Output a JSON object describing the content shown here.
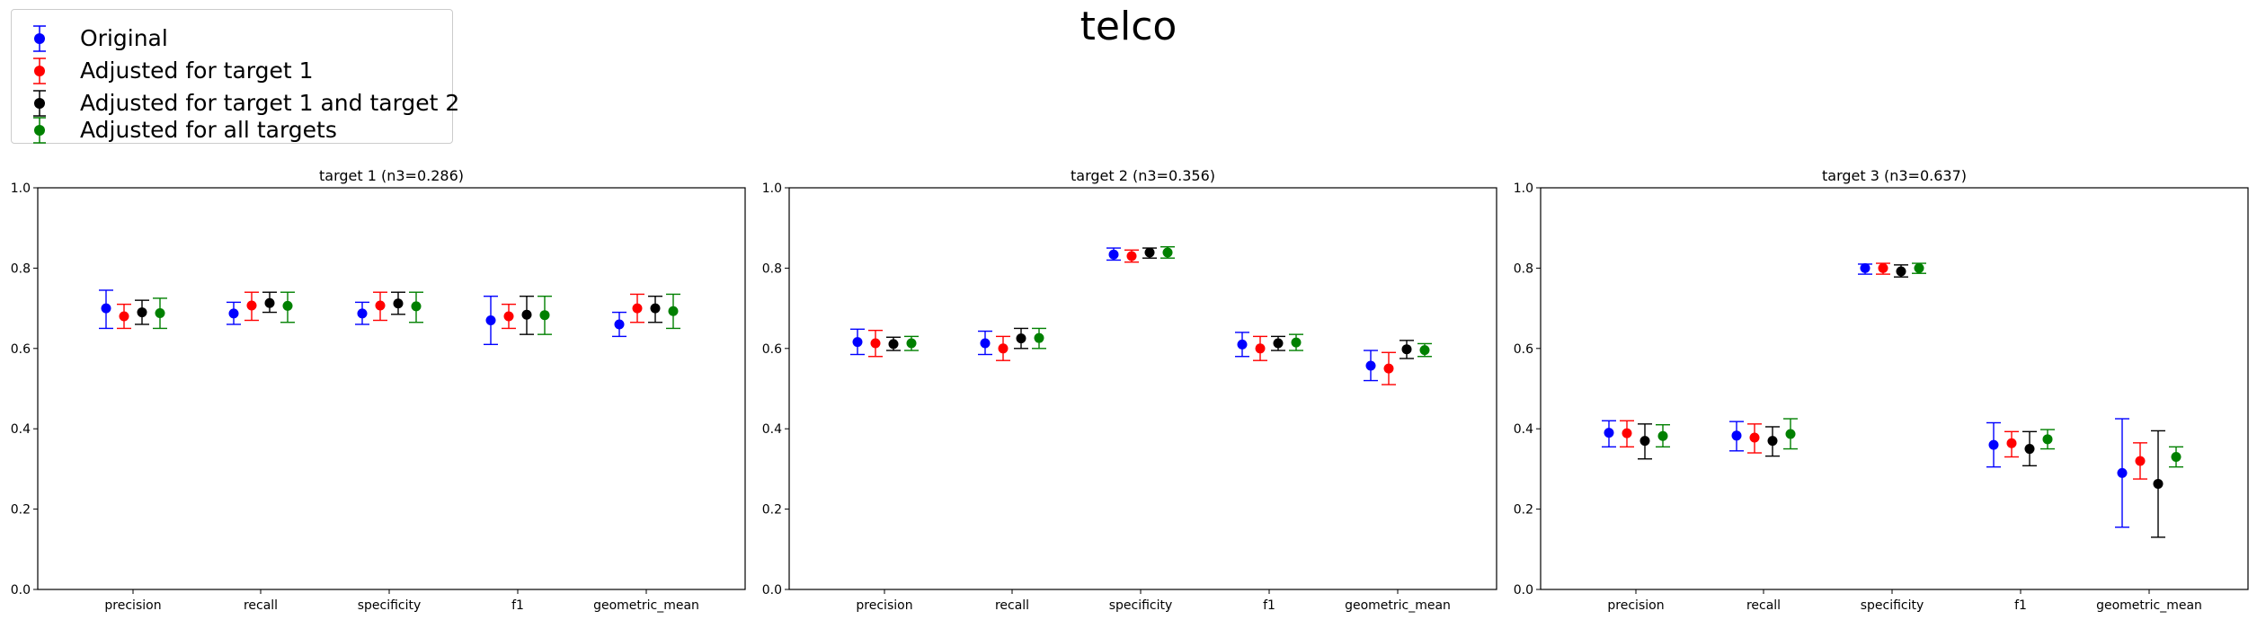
{
  "figure_title": "telco",
  "legend": [
    {
      "label": "Original",
      "color": "#0000ff"
    },
    {
      "label": "Adjusted for target 1",
      "color": "#ff0000"
    },
    {
      "label": "Adjusted for target 1 and target 2",
      "color": "#000000"
    },
    {
      "label": "Adjusted for all targets",
      "color": "#008000"
    }
  ],
  "chart_data": [
    {
      "type": "scatter",
      "title": "target 1 (n3=0.286)",
      "categories": [
        "precision",
        "recall",
        "specificity",
        "f1",
        "geometric_mean"
      ],
      "ylim": [
        0,
        1.0
      ],
      "yticks": [
        "0.0",
        "0.2",
        "0.4",
        "0.6",
        "0.8",
        "1.0"
      ],
      "error_bars": true,
      "series": [
        {
          "name": "Original",
          "color": "#0000ff",
          "values": [
            0.7,
            0.687,
            0.687,
            0.67,
            0.66
          ],
          "lower": [
            0.65,
            0.66,
            0.66,
            0.61,
            0.63
          ],
          "upper": [
            0.745,
            0.715,
            0.715,
            0.73,
            0.69
          ]
        },
        {
          "name": "Adjusted for target 1",
          "color": "#ff0000",
          "values": [
            0.68,
            0.707,
            0.707,
            0.68,
            0.7
          ],
          "lower": [
            0.65,
            0.67,
            0.67,
            0.65,
            0.665
          ],
          "upper": [
            0.71,
            0.74,
            0.74,
            0.71,
            0.735
          ]
        },
        {
          "name": "Adjusted for target 1 and target 2",
          "color": "#000000",
          "values": [
            0.69,
            0.713,
            0.712,
            0.684,
            0.7
          ],
          "lower": [
            0.66,
            0.69,
            0.685,
            0.635,
            0.665
          ],
          "upper": [
            0.72,
            0.74,
            0.74,
            0.73,
            0.73
          ]
        },
        {
          "name": "Adjusted for all targets",
          "color": "#008000",
          "values": [
            0.688,
            0.706,
            0.705,
            0.683,
            0.693
          ],
          "lower": [
            0.65,
            0.665,
            0.665,
            0.635,
            0.65
          ],
          "upper": [
            0.725,
            0.74,
            0.74,
            0.73,
            0.735
          ]
        }
      ]
    },
    {
      "type": "scatter",
      "title": "target 2 (n3=0.356)",
      "categories": [
        "precision",
        "recall",
        "specificity",
        "f1",
        "geometric_mean"
      ],
      "ylim": [
        0,
        1.0
      ],
      "yticks": [
        "0.0",
        "0.2",
        "0.4",
        "0.6",
        "0.8",
        "1.0"
      ],
      "error_bars": true,
      "series": [
        {
          "name": "Original",
          "color": "#0000ff",
          "values": [
            0.616,
            0.613,
            0.834,
            0.61,
            0.557
          ],
          "lower": [
            0.585,
            0.585,
            0.82,
            0.58,
            0.52
          ],
          "upper": [
            0.648,
            0.643,
            0.85,
            0.64,
            0.595
          ]
        },
        {
          "name": "Adjusted for target 1",
          "color": "#ff0000",
          "values": [
            0.613,
            0.6,
            0.83,
            0.6,
            0.55
          ],
          "lower": [
            0.58,
            0.57,
            0.815,
            0.57,
            0.51
          ],
          "upper": [
            0.645,
            0.63,
            0.845,
            0.63,
            0.59
          ]
        },
        {
          "name": "Adjusted for target 1 and target 2",
          "color": "#000000",
          "values": [
            0.611,
            0.625,
            0.839,
            0.613,
            0.598
          ],
          "lower": [
            0.595,
            0.6,
            0.825,
            0.595,
            0.575
          ],
          "upper": [
            0.628,
            0.65,
            0.85,
            0.63,
            0.62
          ]
        },
        {
          "name": "Adjusted for all targets",
          "color": "#008000",
          "values": [
            0.613,
            0.626,
            0.839,
            0.615,
            0.596
          ],
          "lower": [
            0.595,
            0.6,
            0.825,
            0.595,
            0.58
          ],
          "upper": [
            0.63,
            0.65,
            0.853,
            0.635,
            0.612
          ]
        }
      ]
    },
    {
      "type": "scatter",
      "title": "target 3 (n3=0.637)",
      "categories": [
        "precision",
        "recall",
        "specificity",
        "f1",
        "geometric_mean"
      ],
      "ylim": [
        0,
        1.0
      ],
      "yticks": [
        "0.0",
        "0.2",
        "0.4",
        "0.6",
        "0.8",
        "1.0"
      ],
      "error_bars": true,
      "series": [
        {
          "name": "Original",
          "color": "#0000ff",
          "values": [
            0.39,
            0.383,
            0.8,
            0.36,
            0.29
          ],
          "lower": [
            0.355,
            0.345,
            0.785,
            0.305,
            0.155
          ],
          "upper": [
            0.42,
            0.418,
            0.81,
            0.415,
            0.425
          ]
        },
        {
          "name": "Adjusted for target 1",
          "color": "#ff0000",
          "values": [
            0.389,
            0.378,
            0.8,
            0.364,
            0.32
          ],
          "lower": [
            0.355,
            0.34,
            0.785,
            0.33,
            0.275
          ],
          "upper": [
            0.42,
            0.412,
            0.812,
            0.393,
            0.365
          ]
        },
        {
          "name": "Adjusted for target 1 and target 2",
          "color": "#000000",
          "values": [
            0.37,
            0.37,
            0.792,
            0.35,
            0.263
          ],
          "lower": [
            0.325,
            0.332,
            0.778,
            0.308,
            0.13
          ],
          "upper": [
            0.412,
            0.405,
            0.808,
            0.393,
            0.395
          ]
        },
        {
          "name": "Adjusted for all targets",
          "color": "#008000",
          "values": [
            0.382,
            0.387,
            0.8,
            0.374,
            0.33
          ],
          "lower": [
            0.355,
            0.35,
            0.787,
            0.35,
            0.305
          ],
          "upper": [
            0.41,
            0.425,
            0.812,
            0.398,
            0.355
          ]
        }
      ]
    }
  ]
}
